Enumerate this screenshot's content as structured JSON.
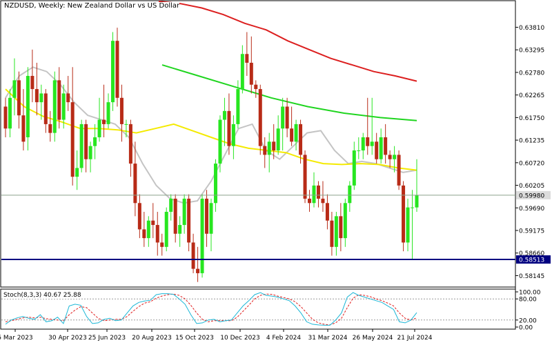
{
  "title": "NZDUSD, Weekly:  New Zealand Dollar vs US Dollar",
  "stoch_label": "Stoch(8,3,3) 40.67 25.88",
  "colors": {
    "bull": "#27e620",
    "bear": "#b82b17",
    "ma_red": "#dc1f1f",
    "ma_green": "#1fd51f",
    "ma_yellow": "#f4ea00",
    "ma_silver": "#c4c4c4",
    "support_line": "#000080",
    "current_line": "#8aa28a",
    "stoch_main": "#19b6d6",
    "stoch_signal": "#e01c1c"
  },
  "chart_data": {
    "type": "candlestick",
    "symbol": "NZDUSD",
    "timeframe": "Weekly",
    "ylim": [
      0.579,
      0.644
    ],
    "y_ticks": [
      "0.63810",
      "0.63295",
      "0.62780",
      "0.62265",
      "0.61750",
      "0.61235",
      "0.60720",
      "0.60205",
      "0.59690",
      "0.59175",
      "0.58660",
      "0.58145"
    ],
    "x_ticks": [
      "5 Mar 2023",
      "30 Apr 2023",
      "25 Jun 2023",
      "20 Aug 2023",
      "15 Oct 2023",
      "10 Dec 2023",
      "4 Feb 2024",
      "31 Mar 2024",
      "26 May 2024",
      "21 Jul 2024"
    ],
    "current_price": "0.59980",
    "support_level": "0.58513",
    "candles": [
      [
        0.62,
        0.622,
        0.613,
        0.615
      ],
      [
        0.615,
        0.624,
        0.613,
        0.622
      ],
      [
        0.622,
        0.631,
        0.618,
        0.626
      ],
      [
        0.626,
        0.628,
        0.615,
        0.618
      ],
      [
        0.618,
        0.624,
        0.61,
        0.612
      ],
      [
        0.613,
        0.629,
        0.61,
        0.627
      ],
      [
        0.627,
        0.633,
        0.621,
        0.624
      ],
      [
        0.624,
        0.63,
        0.618,
        0.621
      ],
      [
        0.621,
        0.625,
        0.617,
        0.623
      ],
      [
        0.623,
        0.624,
        0.614,
        0.616
      ],
      [
        0.616,
        0.619,
        0.612,
        0.614
      ],
      [
        0.614,
        0.628,
        0.612,
        0.626
      ],
      [
        0.626,
        0.629,
        0.615,
        0.617
      ],
      [
        0.617,
        0.625,
        0.615,
        0.623
      ],
      [
        0.623,
        0.627,
        0.619,
        0.621
      ],
      [
        0.621,
        0.629,
        0.602,
        0.604
      ],
      [
        0.604,
        0.61,
        0.601,
        0.606
      ],
      [
        0.606,
        0.617,
        0.605,
        0.616
      ],
      [
        0.616,
        0.617,
        0.605,
        0.608
      ],
      [
        0.608,
        0.612,
        0.605,
        0.611
      ],
      [
        0.611,
        0.616,
        0.608,
        0.613
      ],
      [
        0.613,
        0.622,
        0.612,
        0.617
      ],
      [
        0.617,
        0.625,
        0.613,
        0.616
      ],
      [
        0.616,
        0.623,
        0.615,
        0.621
      ],
      [
        0.621,
        0.637,
        0.619,
        0.635
      ],
      [
        0.635,
        0.638,
        0.62,
        0.622
      ],
      [
        0.622,
        0.625,
        0.612,
        0.616
      ],
      [
        0.616,
        0.617,
        0.613,
        0.616
      ],
      [
        0.616,
        0.617,
        0.604,
        0.607
      ],
      [
        0.607,
        0.612,
        0.595,
        0.598
      ],
      [
        0.598,
        0.6,
        0.59,
        0.592
      ],
      [
        0.592,
        0.596,
        0.588,
        0.59
      ],
      [
        0.59,
        0.595,
        0.588,
        0.594
      ],
      [
        0.594,
        0.598,
        0.59,
        0.593
      ],
      [
        0.593,
        0.596,
        0.586,
        0.589
      ],
      [
        0.589,
        0.591,
        0.586,
        0.588
      ],
      [
        0.588,
        0.597,
        0.587,
        0.596
      ],
      [
        0.596,
        0.6,
        0.594,
        0.599
      ],
      [
        0.599,
        0.6,
        0.589,
        0.591
      ],
      [
        0.591,
        0.595,
        0.588,
        0.593
      ],
      [
        0.593,
        0.6,
        0.591,
        0.599
      ],
      [
        0.599,
        0.6,
        0.587,
        0.589
      ],
      [
        0.589,
        0.591,
        0.582,
        0.583
      ],
      [
        0.583,
        0.588,
        0.58,
        0.582
      ],
      [
        0.582,
        0.6,
        0.581,
        0.599
      ],
      [
        0.599,
        0.601,
        0.588,
        0.591
      ],
      [
        0.591,
        0.599,
        0.587,
        0.598
      ],
      [
        0.598,
        0.608,
        0.596,
        0.607
      ],
      [
        0.607,
        0.618,
        0.605,
        0.617
      ],
      [
        0.617,
        0.622,
        0.611,
        0.619
      ],
      [
        0.619,
        0.623,
        0.609,
        0.611
      ],
      [
        0.611,
        0.618,
        0.608,
        0.616
      ],
      [
        0.616,
        0.626,
        0.615,
        0.624
      ],
      [
        0.624,
        0.634,
        0.623,
        0.632
      ],
      [
        0.632,
        0.637,
        0.627,
        0.63
      ],
      [
        0.63,
        0.636,
        0.623,
        0.625
      ],
      [
        0.625,
        0.626,
        0.622,
        0.624
      ],
      [
        0.624,
        0.625,
        0.609,
        0.611
      ],
      [
        0.611,
        0.613,
        0.606,
        0.609
      ],
      [
        0.609,
        0.614,
        0.605,
        0.612
      ],
      [
        0.612,
        0.616,
        0.608,
        0.61
      ],
      [
        0.61,
        0.618,
        0.609,
        0.615
      ],
      [
        0.615,
        0.622,
        0.61,
        0.62
      ],
      [
        0.62,
        0.622,
        0.613,
        0.615
      ],
      [
        0.615,
        0.62,
        0.611,
        0.612
      ],
      [
        0.612,
        0.617,
        0.61,
        0.616
      ],
      [
        0.616,
        0.617,
        0.607,
        0.609
      ],
      [
        0.609,
        0.61,
        0.598,
        0.599
      ],
      [
        0.599,
        0.601,
        0.596,
        0.598
      ],
      [
        0.598,
        0.605,
        0.597,
        0.602
      ],
      [
        0.602,
        0.603,
        0.597,
        0.599
      ],
      [
        0.599,
        0.603,
        0.596,
        0.598
      ],
      [
        0.598,
        0.6,
        0.592,
        0.594
      ],
      [
        0.594,
        0.596,
        0.586,
        0.588
      ],
      [
        0.588,
        0.596,
        0.586,
        0.595
      ],
      [
        0.595,
        0.598,
        0.587,
        0.59
      ],
      [
        0.59,
        0.599,
        0.588,
        0.598
      ],
      [
        0.598,
        0.603,
        0.596,
        0.602
      ],
      [
        0.602,
        0.612,
        0.601,
        0.61
      ],
      [
        0.61,
        0.613,
        0.608,
        0.61
      ],
      [
        0.61,
        0.614,
        0.608,
        0.613
      ],
      [
        0.613,
        0.622,
        0.609,
        0.611
      ],
      [
        0.611,
        0.622,
        0.609,
        0.612
      ],
      [
        0.612,
        0.614,
        0.607,
        0.608
      ],
      [
        0.608,
        0.615,
        0.607,
        0.613
      ],
      [
        0.613,
        0.616,
        0.607,
        0.609
      ],
      [
        0.609,
        0.61,
        0.606,
        0.608
      ],
      [
        0.608,
        0.611,
        0.605,
        0.609
      ],
      [
        0.609,
        0.61,
        0.601,
        0.602
      ],
      [
        0.602,
        0.603,
        0.587,
        0.589
      ],
      [
        0.589,
        0.599,
        0.587,
        0.597
      ],
      [
        0.597,
        0.601,
        0.585,
        0.597
      ],
      [
        0.597,
        0.608,
        0.596,
        0.5998
      ]
    ],
    "ma_red": [
      0.644,
      0.6435,
      0.6425,
      0.641,
      0.639,
      0.6375,
      0.635,
      0.633,
      0.631,
      0.6295,
      0.628,
      0.627,
      0.6258
    ],
    "ma_green": [
      0.6295,
      0.627,
      0.6245,
      0.622,
      0.62,
      0.6185,
      0.6175,
      0.6168
    ],
    "ma_yellow": [
      0.624,
      0.62,
      0.6178,
      0.6165,
      0.615,
      0.615,
      0.6147,
      0.614,
      0.615,
      0.616,
      0.6145,
      0.613,
      0.6115,
      0.6105,
      0.61,
      0.6095,
      0.608,
      0.607,
      0.6068,
      0.607,
      0.6068,
      0.606,
      0.6055
    ],
    "ma_silver": [
      0.622,
      0.627,
      0.629,
      0.628,
      0.625,
      0.621,
      0.618,
      0.617,
      0.616,
      0.613,
      0.607,
      0.602,
      0.599,
      0.598,
      0.5985,
      0.603,
      0.609,
      0.615,
      0.616,
      0.61,
      0.608,
      0.611,
      0.614,
      0.6145,
      0.61,
      0.607,
      0.6075,
      0.607,
      0.606,
      0.605,
      0.6055
    ],
    "stoch_range": [
      0,
      100
    ],
    "stoch_levels": [
      20,
      80
    ],
    "stoch_ticks": [
      "100.00",
      "80.00",
      "20.00",
      "0.00"
    ],
    "stoch_main": [
      8,
      20,
      26,
      30,
      25,
      22,
      35,
      15,
      18,
      28,
      10,
      60,
      65,
      62,
      30,
      10,
      12,
      22,
      25,
      18,
      20,
      40,
      60,
      70,
      74,
      76,
      92,
      95,
      95,
      93,
      80,
      65,
      35,
      10,
      12,
      20,
      22,
      15,
      18,
      20,
      40,
      60,
      75,
      92,
      98,
      90,
      88,
      85,
      80,
      75,
      60,
      40,
      15,
      8,
      6,
      5,
      5,
      20,
      40,
      85,
      98,
      90,
      85,
      80,
      75,
      70,
      60,
      50,
      15,
      12,
      20,
      41
    ],
    "stoch_signal": [
      15,
      18,
      22,
      26,
      28,
      26,
      28,
      24,
      22,
      20,
      18,
      35,
      48,
      58,
      55,
      40,
      25,
      18,
      20,
      22,
      22,
      30,
      45,
      58,
      68,
      72,
      82,
      88,
      92,
      94,
      90,
      80,
      62,
      40,
      22,
      15,
      18,
      18,
      18,
      18,
      28,
      45,
      62,
      80,
      90,
      94,
      93,
      88,
      84,
      80,
      72,
      58,
      40,
      22,
      12,
      8,
      6,
      12,
      25,
      55,
      82,
      92,
      90,
      86,
      80,
      75,
      68,
      60,
      40,
      25,
      20,
      26
    ]
  }
}
